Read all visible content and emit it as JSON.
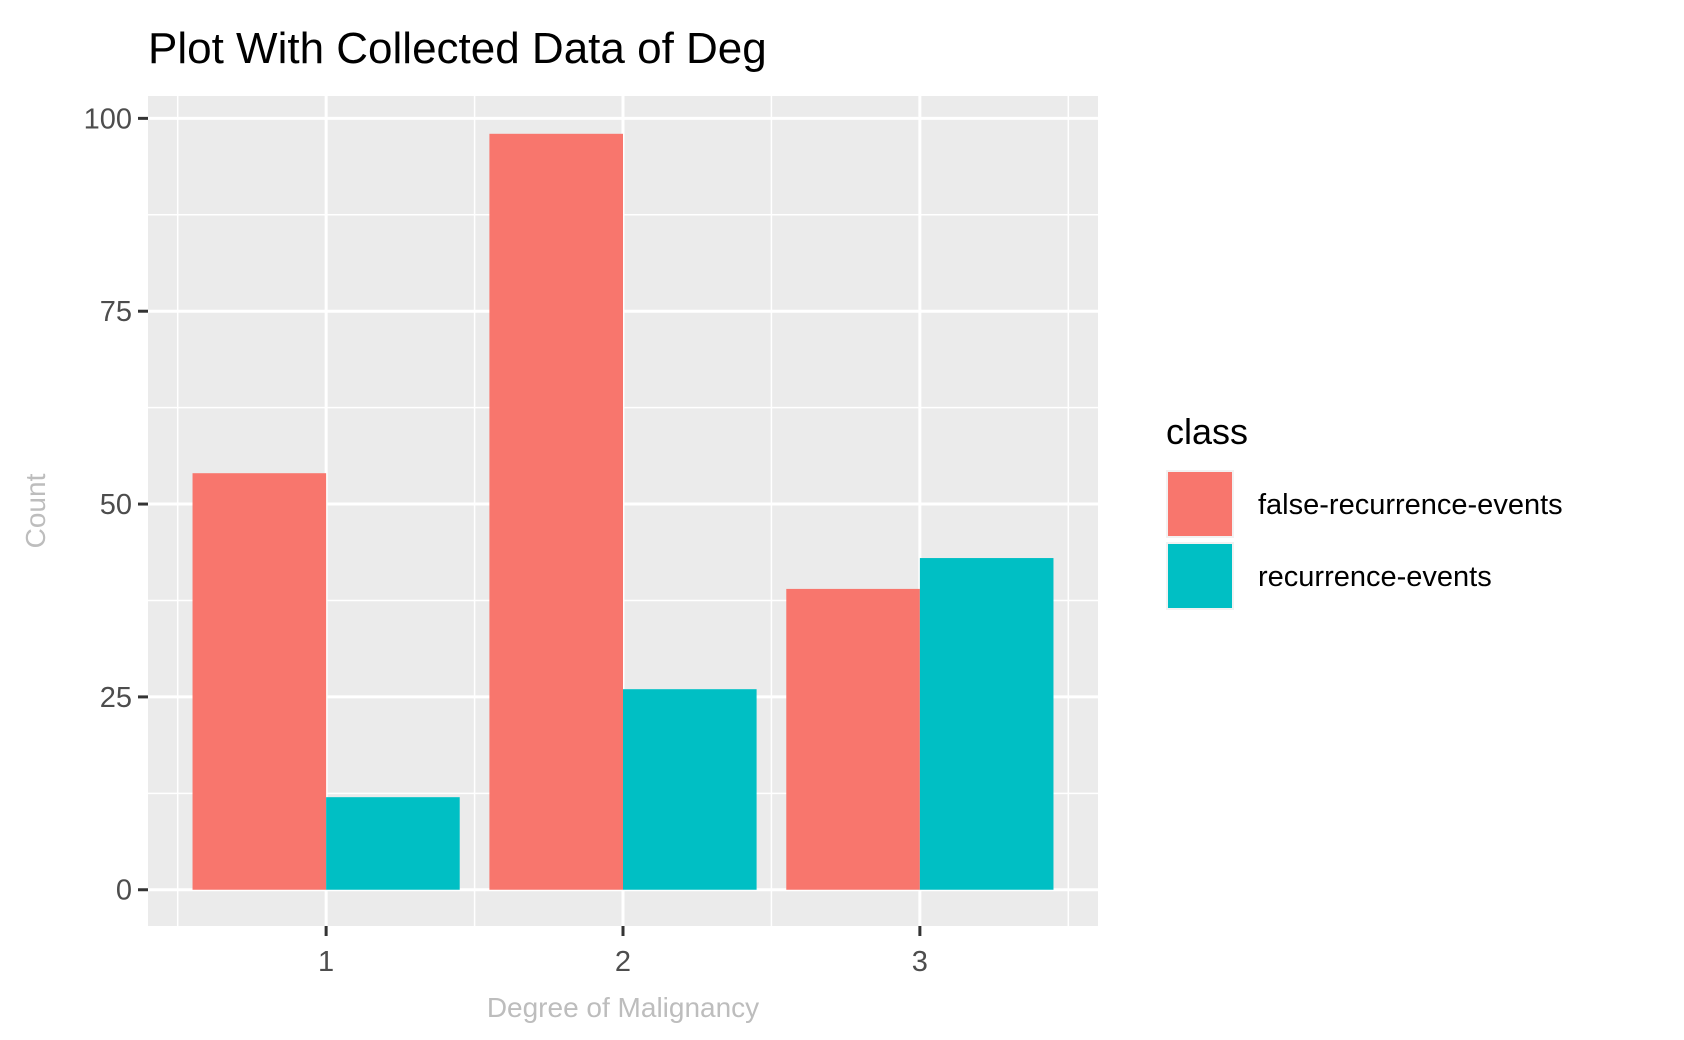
{
  "chart_data": {
    "type": "bar",
    "title": "Plot With Collected Data of Deg",
    "xlabel": "Degree of Malignancy",
    "ylabel": "Count",
    "categories": [
      "1",
      "2",
      "3"
    ],
    "series": [
      {
        "name": "false-recurrence-events",
        "color": "#F8766D",
        "values": [
          54,
          98,
          39
        ]
      },
      {
        "name": "recurrence-events",
        "color": "#00BFC4",
        "values": [
          12,
          26,
          43
        ]
      }
    ],
    "ylim": [
      -4.7,
      102.9
    ],
    "yticks": [
      0,
      25,
      50,
      75,
      100
    ],
    "grid": true,
    "panel_background": "#EBEBEB",
    "grid_color": "#FFFFFF",
    "legend": {
      "title": "class",
      "placement": "right"
    }
  }
}
